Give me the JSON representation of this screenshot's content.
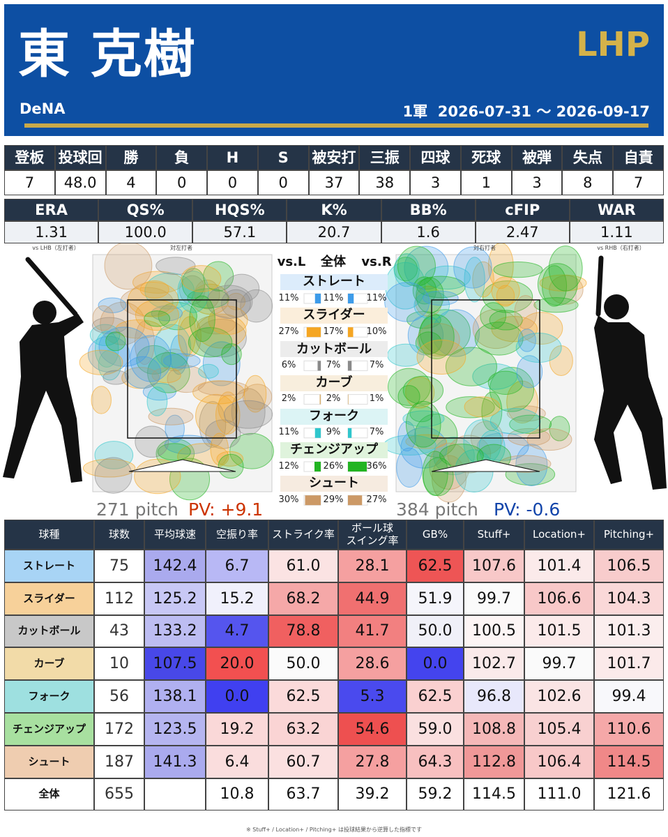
{
  "header": {
    "name": "東 克樹",
    "position": "LHP",
    "team": "DeNA",
    "period": "1軍  2026-07-31 〜 2026-09-17"
  },
  "basic_stats": {
    "headers": [
      "登板",
      "投球回",
      "勝",
      "負",
      "H",
      "S",
      "被安打",
      "三振",
      "四球",
      "死球",
      "被弾",
      "失点",
      "自責"
    ],
    "values": [
      "7",
      "48.0",
      "4",
      "0",
      "0",
      "0",
      "37",
      "38",
      "3",
      "1",
      "3",
      "8",
      "7"
    ]
  },
  "advanced_stats": {
    "headers": [
      "ERA",
      "QS%",
      "HQS%",
      "K%",
      "BB%",
      "cFIP",
      "WAR"
    ],
    "values": [
      "1.31",
      "100.0",
      "57.1",
      "20.7",
      "1.6",
      "2.47",
      "1.11"
    ]
  },
  "usage": {
    "left_caption": "vs LHB（左打者）",
    "left_title": "対左打者",
    "right_title": "対右打者",
    "right_caption": "vs RHB（右打者）",
    "columns": [
      "vs.L",
      "全体",
      "vs.R"
    ],
    "pitches": [
      {
        "name": "ストレート",
        "color": "#3d9be9",
        "values": [
          11,
          11,
          11
        ],
        "value_labels": [
          "11%",
          "11%",
          "11%"
        ]
      },
      {
        "name": "スライダー",
        "color": "#f5a623",
        "values": [
          27,
          17,
          10
        ],
        "value_labels": [
          "27%",
          "17%",
          "10%"
        ]
      },
      {
        "name": "カットボール",
        "color": "#8a8a8a",
        "values": [
          6,
          7,
          7
        ],
        "value_labels": [
          "6%",
          "7%",
          "7%"
        ]
      },
      {
        "name": "カーブ",
        "color": "#d8b070",
        "values": [
          2,
          2,
          1
        ],
        "value_labels": [
          "2%",
          "2%",
          "1%"
        ]
      },
      {
        "name": "フォーク",
        "color": "#2fc6cc",
        "values": [
          11,
          9,
          7
        ],
        "value_labels": [
          "11%",
          "9%",
          "7%"
        ]
      },
      {
        "name": "チェンジアップ",
        "color": "#22b422",
        "values": [
          12,
          26,
          36
        ],
        "value_labels": [
          "12%",
          "26%",
          "36%"
        ]
      },
      {
        "name": "シュート",
        "color": "#cc9966",
        "values": [
          30,
          29,
          27
        ],
        "value_labels": [
          "30%",
          "29%",
          "27%"
        ]
      }
    ],
    "left_summary": {
      "pitches": "271 pitch",
      "pv": "PV: +9.1"
    },
    "right_summary": {
      "pitches": "384 pitch",
      "pv": "PV: -0.6"
    }
  },
  "pitch_table": {
    "headers": [
      "球種",
      "球数",
      "平均球速",
      "空振り率",
      "ストライク率",
      "ボール球\nスイング率",
      "GB%",
      "Stuff+",
      "Location+",
      "Pitching+"
    ],
    "rows": [
      [
        "ストレート",
        "75",
        "142.4",
        "6.7",
        "61.0",
        "28.1",
        "62.5",
        "107.6",
        "101.4",
        "106.5"
      ],
      [
        "スライダー",
        "112",
        "125.2",
        "15.2",
        "68.2",
        "44.9",
        "51.9",
        "99.7",
        "106.6",
        "104.3"
      ],
      [
        "カットボール",
        "43",
        "133.2",
        "4.7",
        "78.8",
        "41.7",
        "50.0",
        "100.5",
        "101.5",
        "101.3"
      ],
      [
        "カーブ",
        "10",
        "107.5",
        "20.0",
        "50.0",
        "28.6",
        "0.0",
        "102.7",
        "99.7",
        "101.7"
      ],
      [
        "フォーク",
        "56",
        "138.1",
        "0.0",
        "62.5",
        "5.3",
        "62.5",
        "96.8",
        "102.6",
        "99.4"
      ],
      [
        "チェンジアップ",
        "172",
        "123.5",
        "19.2",
        "63.2",
        "54.6",
        "59.0",
        "108.8",
        "105.4",
        "110.6"
      ],
      [
        "シュート",
        "187",
        "141.3",
        "6.4",
        "60.7",
        "27.8",
        "64.3",
        "112.8",
        "106.4",
        "114.5"
      ],
      [
        "全体",
        "655",
        "",
        "10.8",
        "63.7",
        "39.2",
        "59.2",
        "114.5",
        "111.0",
        "121.6"
      ]
    ]
  },
  "footnote": "※ Stuff+ / Location+ / Pitching+ は投球結果から逆算した指標です"
}
